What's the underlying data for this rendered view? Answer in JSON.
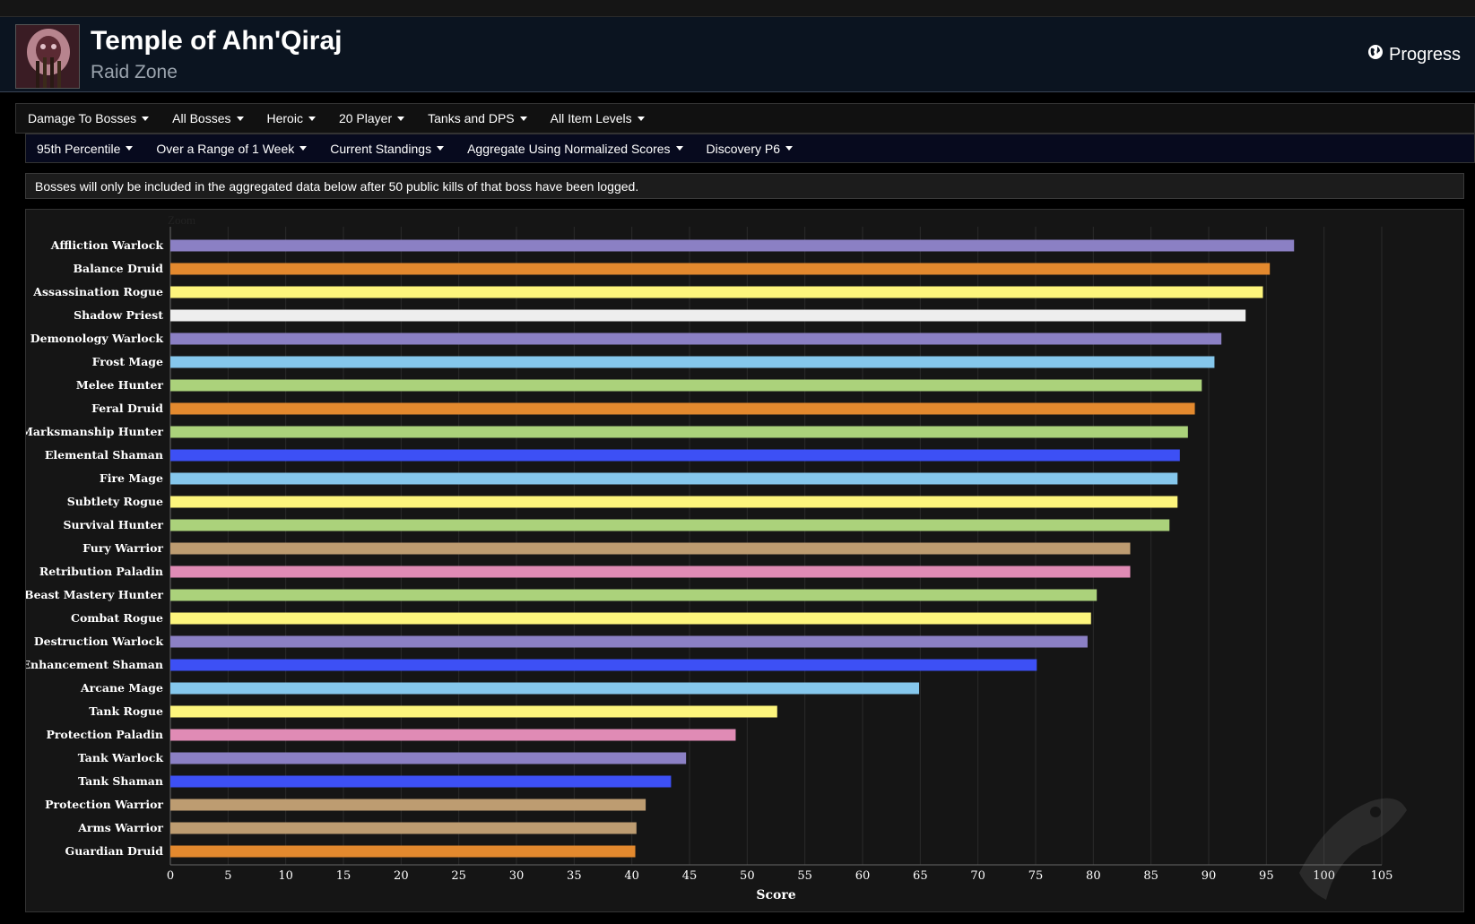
{
  "header": {
    "title": "Temple of Ahn'Qiraj",
    "subtitle": "Raid Zone",
    "progress_label": "Progress",
    "zone_icon": "temple-of-ahnqiraj-zone-icon"
  },
  "filters_row1": [
    {
      "label": "Damage To Bosses"
    },
    {
      "label": "All Bosses"
    },
    {
      "label": "Heroic"
    },
    {
      "label": "20 Player"
    },
    {
      "label": "Tanks and DPS"
    },
    {
      "label": "All Item Levels"
    }
  ],
  "filters_row2": [
    {
      "label": "95th Percentile"
    },
    {
      "label": "Over a Range of 1 Week"
    },
    {
      "label": "Current Standings"
    },
    {
      "label": "Aggregate Using Normalized Scores"
    },
    {
      "label": "Discovery P6"
    }
  ],
  "notice": "Bosses will only be included in the aggregated data below after 50 public kills of that boss have been logged.",
  "chart": {
    "zoom_label": "Zoom"
  },
  "colors": {
    "warlock": "#8b80c4",
    "druid": "#e3892e",
    "rogue": "#fdf57c",
    "priest": "#eeeeee",
    "mage": "#85c7ec",
    "hunter": "#abd27b",
    "shaman": "#3d50f5",
    "warrior": "#bd9c71",
    "paladin": "#e08bb5"
  },
  "chart_data": {
    "type": "bar",
    "orientation": "horizontal",
    "xlabel": "Score",
    "xlim": [
      0,
      105
    ],
    "xticks": [
      0,
      5,
      10,
      15,
      20,
      25,
      30,
      35,
      40,
      45,
      50,
      55,
      60,
      65,
      70,
      75,
      80,
      85,
      90,
      95,
      100,
      105
    ],
    "grid": true,
    "categories": [
      "Affliction Warlock",
      "Balance Druid",
      "Assassination Rogue",
      "Shadow Priest",
      "Demonology Warlock",
      "Frost Mage",
      "Melee Hunter",
      "Feral Druid",
      "Marksmanship Hunter",
      "Elemental Shaman",
      "Fire Mage",
      "Subtlety Rogue",
      "Survival Hunter",
      "Fury Warrior",
      "Retribution Paladin",
      "Beast Mastery Hunter",
      "Combat Rogue",
      "Destruction Warlock",
      "Enhancement Shaman",
      "Arcane Mage",
      "Tank Rogue",
      "Protection Paladin",
      "Tank Warlock",
      "Tank Shaman",
      "Protection Warrior",
      "Arms Warrior",
      "Guardian Druid"
    ],
    "values": [
      97.4,
      95.3,
      94.7,
      93.2,
      91.1,
      90.5,
      89.4,
      88.8,
      88.2,
      87.5,
      87.3,
      87.3,
      86.6,
      83.2,
      83.2,
      80.3,
      79.8,
      79.5,
      75.1,
      64.9,
      52.6,
      49.0,
      44.7,
      43.4,
      41.2,
      40.4,
      40.3
    ],
    "bar_classes": [
      "warlock",
      "druid",
      "rogue",
      "priest",
      "warlock",
      "mage",
      "hunter",
      "druid",
      "hunter",
      "shaman",
      "mage",
      "rogue",
      "hunter",
      "warrior",
      "paladin",
      "hunter",
      "rogue",
      "warlock",
      "shaman",
      "mage",
      "rogue",
      "paladin",
      "warlock",
      "shaman",
      "warrior",
      "warrior",
      "druid"
    ]
  }
}
